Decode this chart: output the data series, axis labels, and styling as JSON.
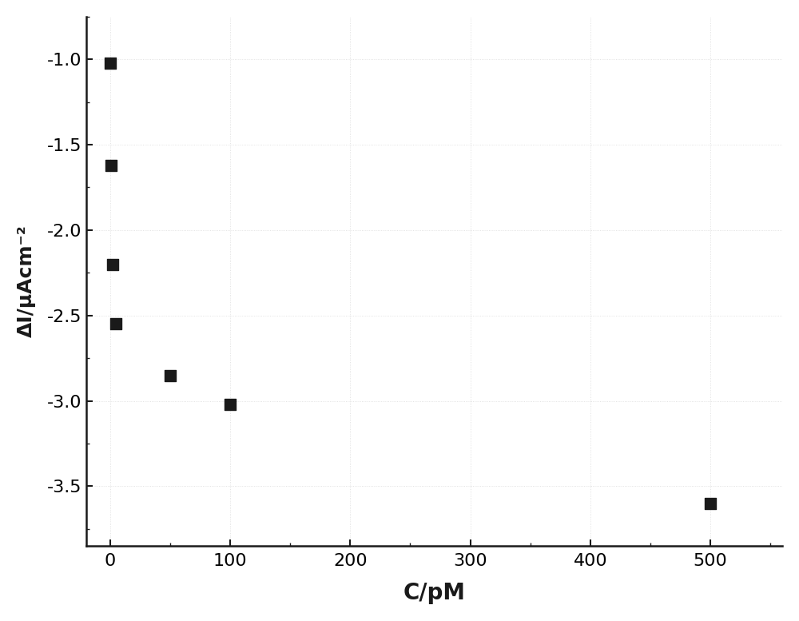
{
  "x": [
    0,
    1,
    2,
    5,
    50,
    100,
    500
  ],
  "y": [
    -1.02,
    -1.62,
    -2.2,
    -2.55,
    -2.85,
    -3.02,
    -3.6
  ],
  "xlabel": "C/pM",
  "ylabel": "ΔI/μAcm⁻²",
  "xlim": [
    -20,
    560
  ],
  "ylim": [
    -3.85,
    -0.75
  ],
  "yticks": [
    -3.5,
    -3.0,
    -2.5,
    -2.0,
    -1.5,
    -1.0
  ],
  "xticks": [
    0,
    100,
    200,
    300,
    400,
    500
  ],
  "marker_color": "#1a1a1a",
  "marker_size": 100,
  "background_color": "#ffffff",
  "axes_color": "#1a1a1a",
  "grid_color": "#cccccc",
  "xlabel_fontsize": 20,
  "ylabel_fontsize": 18,
  "tick_fontsize": 16
}
